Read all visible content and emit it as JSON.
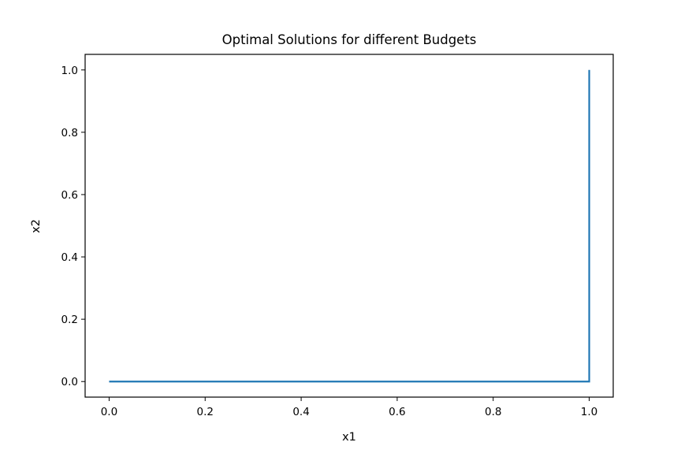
{
  "chart_data": {
    "type": "line",
    "title": "Optimal Solutions for different Budgets",
    "xlabel": "x1",
    "ylabel": "x2",
    "xlim": [
      -0.05,
      1.05
    ],
    "ylim": [
      -0.05,
      1.05
    ],
    "xticks": [
      "0.0",
      "0.2",
      "0.4",
      "0.6",
      "0.8",
      "1.0"
    ],
    "yticks": [
      "0.0",
      "0.2",
      "0.4",
      "0.6",
      "0.8",
      "1.0"
    ],
    "grid": false,
    "series": [
      {
        "color": "#1f77b4",
        "x": [
          0.0,
          1.0,
          1.0
        ],
        "y": [
          0.0,
          0.0,
          1.0
        ]
      }
    ]
  }
}
